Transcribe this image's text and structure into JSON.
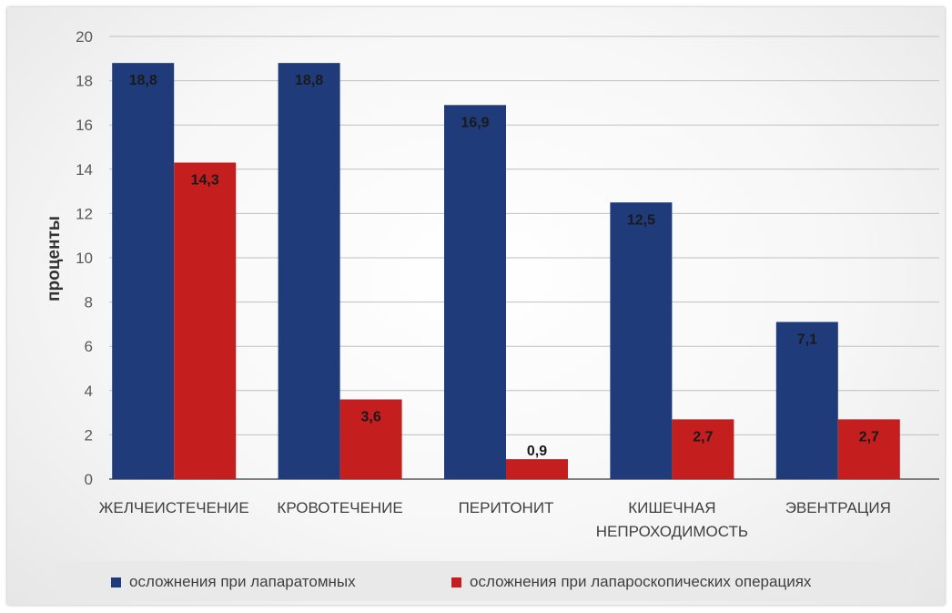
{
  "chart_data": {
    "type": "bar",
    "categories": [
      [
        "ЖЕЛЧЕИСТЕЧЕНИЕ"
      ],
      [
        "КРОВОТЕЧЕНИЕ"
      ],
      [
        "ПЕРИТОНИТ"
      ],
      [
        "КИШЕЧНАЯ",
        "НЕПРОХОДИМОСТЬ"
      ],
      [
        "ЭВЕНТРАЦИЯ"
      ]
    ],
    "series": [
      {
        "name": "осложнения при лапаратомных",
        "color": "#1f3b7a",
        "values": [
          18.8,
          18.8,
          16.9,
          12.5,
          7.1
        ],
        "labels": [
          "18,8",
          "18,8",
          "16,9",
          "12,5",
          "7,1"
        ]
      },
      {
        "name": "осложнения при лапароскопических операциях",
        "color": "#c41e1e",
        "values": [
          14.3,
          3.6,
          0.9,
          2.7,
          2.7
        ],
        "labels": [
          "14,3",
          "3,6",
          "0,9",
          "2,7",
          "2,7"
        ]
      }
    ],
    "ylabel": "проценты",
    "ylim": [
      0,
      20
    ],
    "yticks": [
      0,
      2,
      4,
      6,
      8,
      10,
      12,
      14,
      16,
      18,
      20
    ],
    "grid": true,
    "legend_position": "bottom"
  }
}
